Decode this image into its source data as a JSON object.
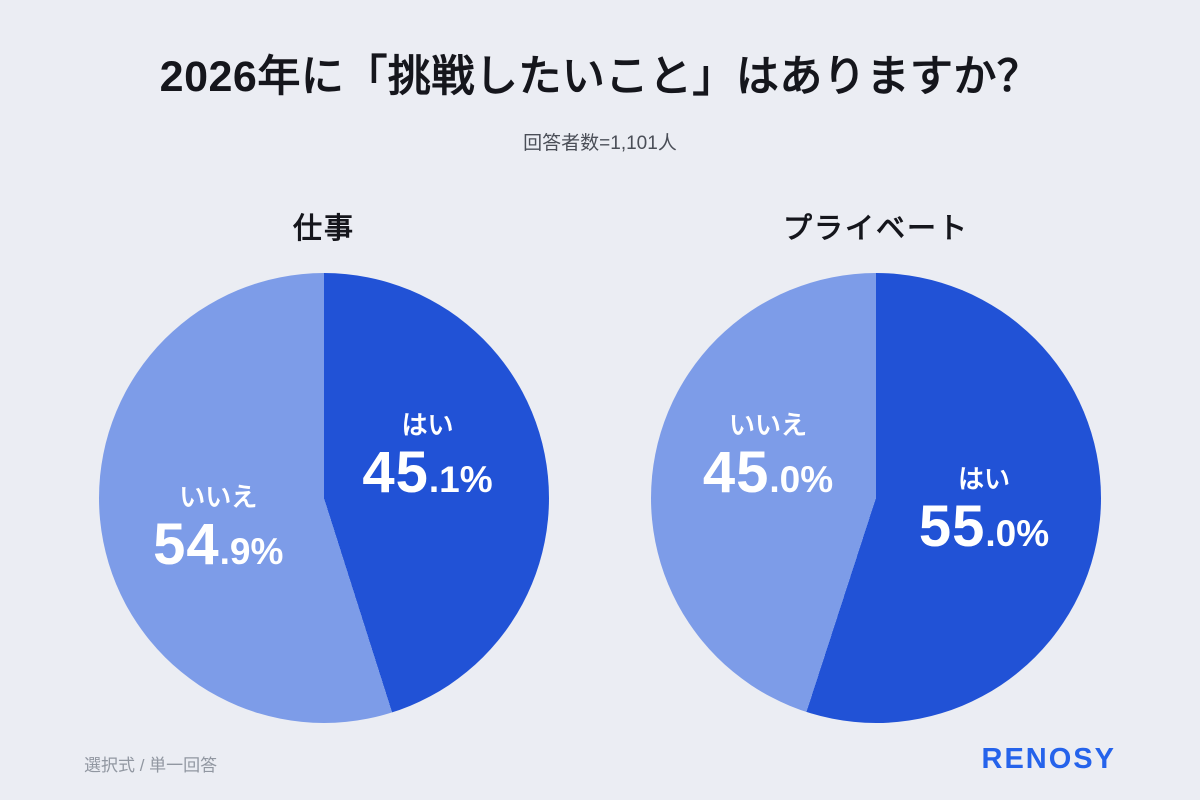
{
  "page": {
    "title": "2026年に「挑戦したいこと」はありますか？",
    "subtitle": "回答者数=1,101人",
    "footer_note": "選択式 / 単一回答",
    "brand": "RENOSY"
  },
  "colors": {
    "background": "#ebedf3",
    "slice_yes": "#2152d6",
    "slice_no": "#7d9ce8",
    "brand_blue": "#2563eb",
    "label_text": "#ffffff"
  },
  "chart_data": [
    {
      "type": "pie",
      "title": "仕事",
      "labels": [
        "はい",
        "いいえ"
      ],
      "values": [
        45.1,
        54.9
      ],
      "colors": [
        "#2152d6",
        "#7d9ce8"
      ],
      "start_angle_deg": 0,
      "direction": "clockwise",
      "legend": "labels drawn inside slices"
    },
    {
      "type": "pie",
      "title": "プライベート",
      "labels": [
        "はい",
        "いいえ"
      ],
      "values": [
        55.0,
        45.0
      ],
      "colors": [
        "#2152d6",
        "#7d9ce8"
      ],
      "start_angle_deg": 0,
      "direction": "clockwise",
      "legend": "labels drawn inside slices"
    }
  ]
}
